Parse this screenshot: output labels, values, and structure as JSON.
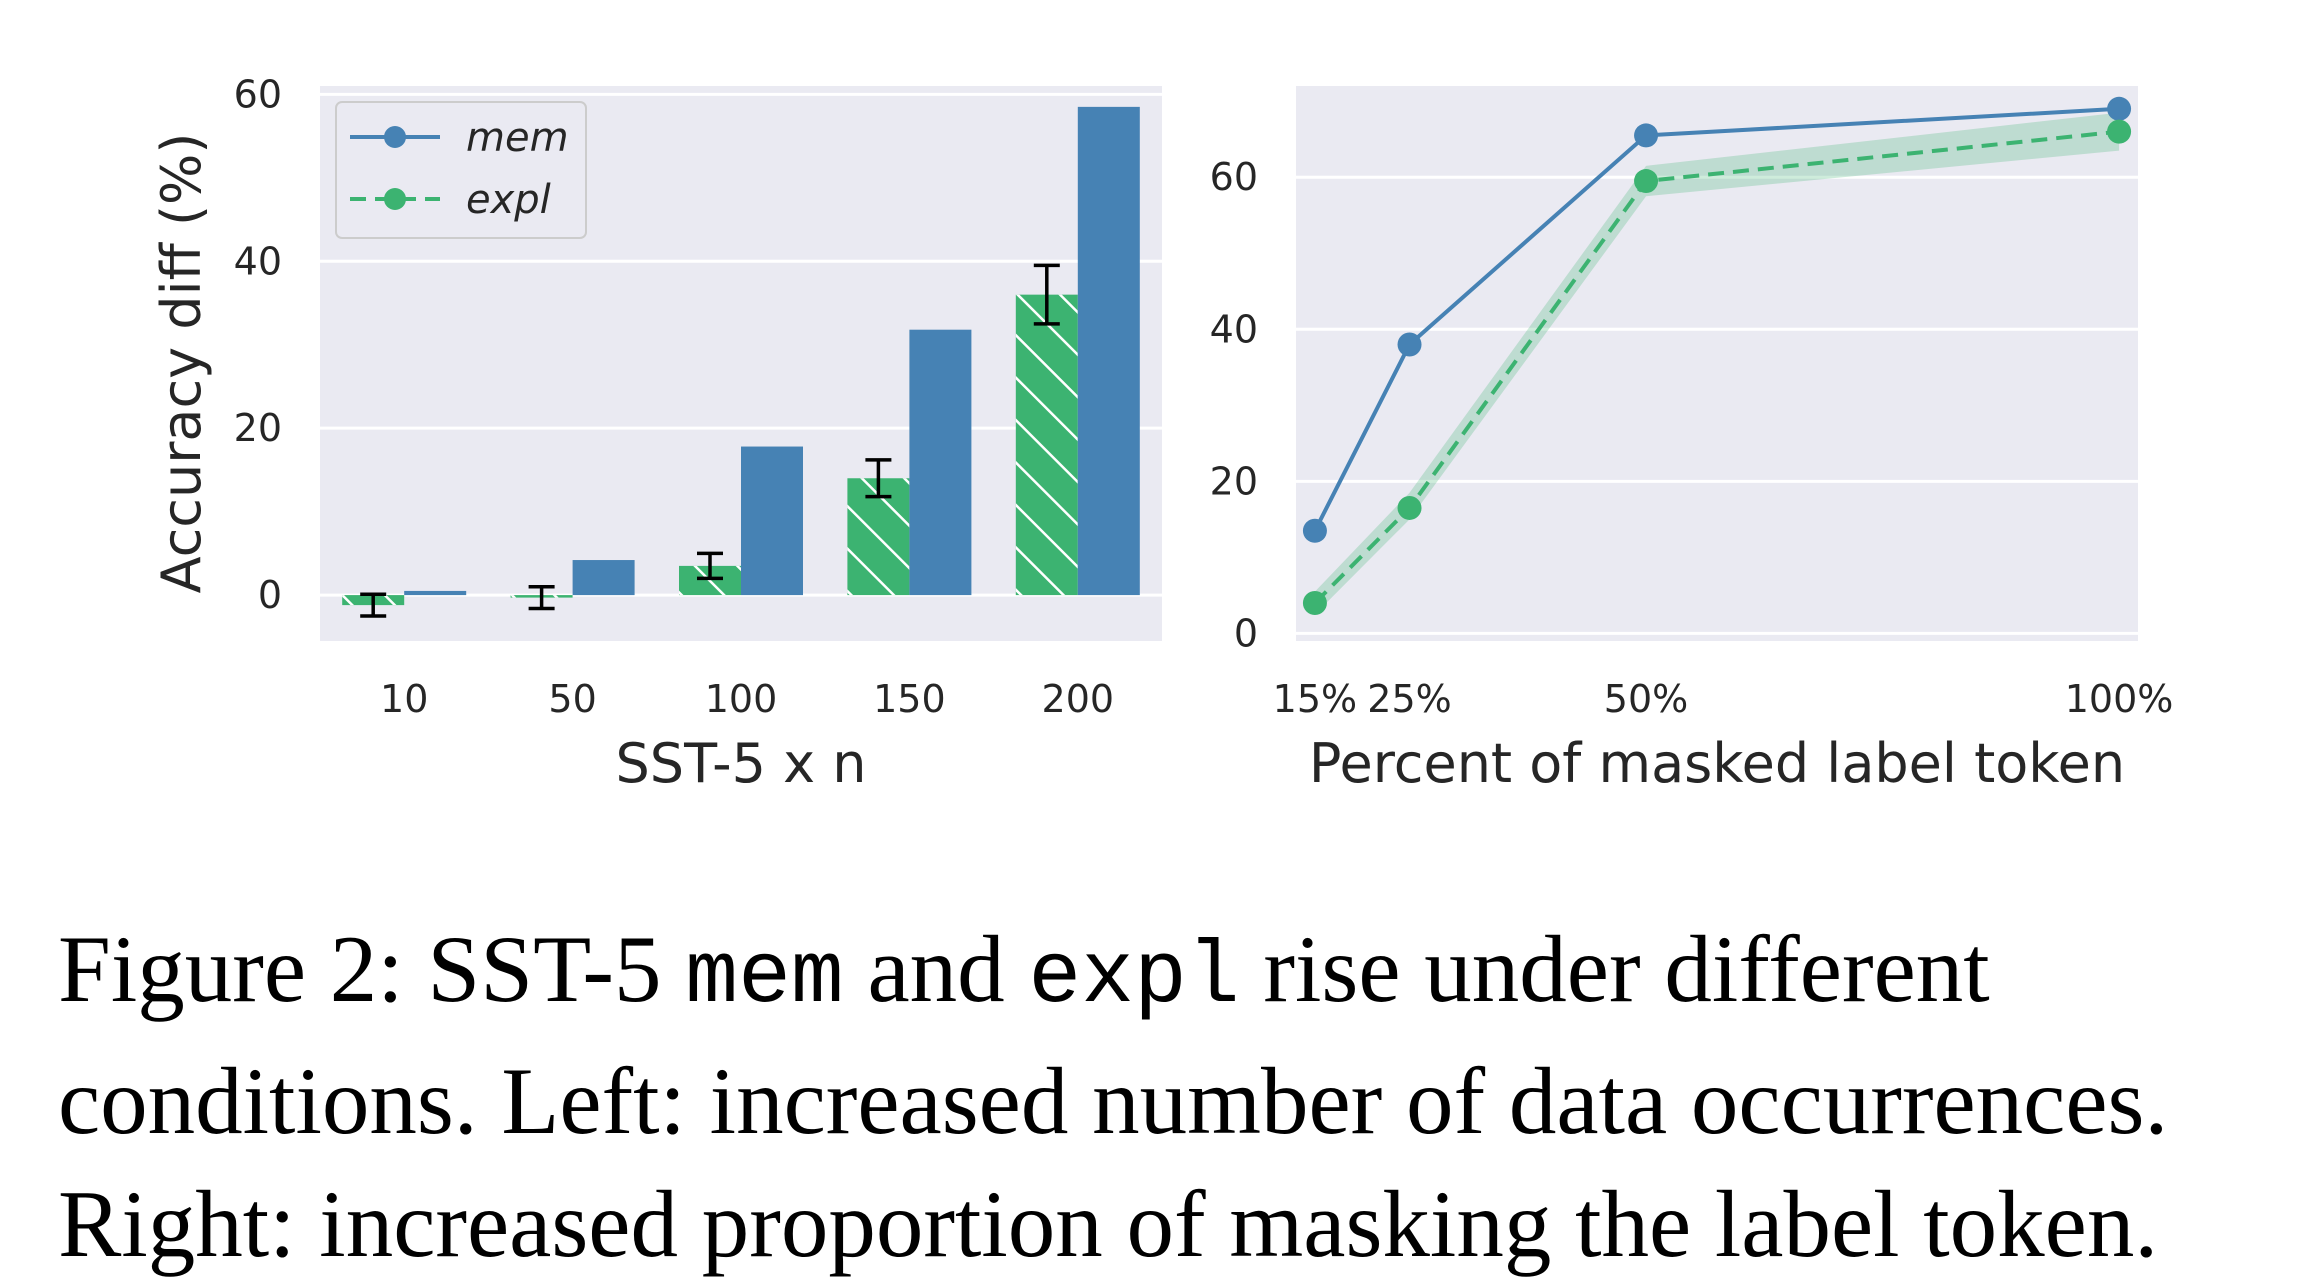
{
  "colors": {
    "mem": "#4682b4",
    "expl": "#3cb371",
    "panel_bg": "#eaeaf2",
    "grid": "#ffffff",
    "error_bar": "#000000"
  },
  "legend": {
    "mem_label": "mem",
    "expl_label": "expl",
    "placement": "upper-left"
  },
  "chart_data": [
    {
      "type": "bar",
      "title": "",
      "xlabel": "SST-5 x n",
      "ylabel": "Accuracy diff (%)",
      "categories": [
        "10",
        "50",
        "100",
        "150",
        "200"
      ],
      "ylim": [
        -5.5,
        61
      ],
      "yticks": [
        "0",
        "20",
        "40",
        "60"
      ],
      "grid": true,
      "series": [
        {
          "name": "expl",
          "hatched": true,
          "values": [
            -1.2,
            -0.3,
            3.5,
            14.0,
            36.0
          ],
          "error": [
            1.3,
            1.3,
            1.5,
            2.2,
            3.5
          ]
        },
        {
          "name": "mem",
          "hatched": false,
          "values": [
            0.5,
            4.2,
            17.8,
            31.8,
            58.5
          ]
        }
      ]
    },
    {
      "type": "line",
      "title": "",
      "xlabel": "Percent of masked label token",
      "ylabel": "",
      "x": [
        15,
        25,
        50,
        100
      ],
      "xtick_labels": [
        "15%",
        "25%",
        "50%",
        "100%"
      ],
      "xlim": [
        13,
        102
      ],
      "ylim": [
        -1,
        72
      ],
      "yticks": [
        "0",
        "20",
        "40",
        "60"
      ],
      "grid": true,
      "series": [
        {
          "name": "mem",
          "style": "solid",
          "values": [
            13.5,
            38.0,
            65.5,
            69.0
          ]
        },
        {
          "name": "expl",
          "style": "dashed",
          "values": [
            4.0,
            16.5,
            59.5,
            66.0
          ],
          "band_low": [
            2.5,
            15.0,
            57.5,
            63.5
          ],
          "band_high": [
            5.5,
            18.5,
            61.5,
            68.5
          ]
        }
      ]
    }
  ],
  "caption": {
    "line1_a": "Figure 2:  SST-5 ",
    "line1_code1": "mem",
    "line1_b": " and ",
    "line1_code2": "expl",
    "line1_c": " rise under different",
    "line2": "conditions. Left: increased number of data occurrences.",
    "line3": "Right: increased proportion of masking the label token."
  }
}
